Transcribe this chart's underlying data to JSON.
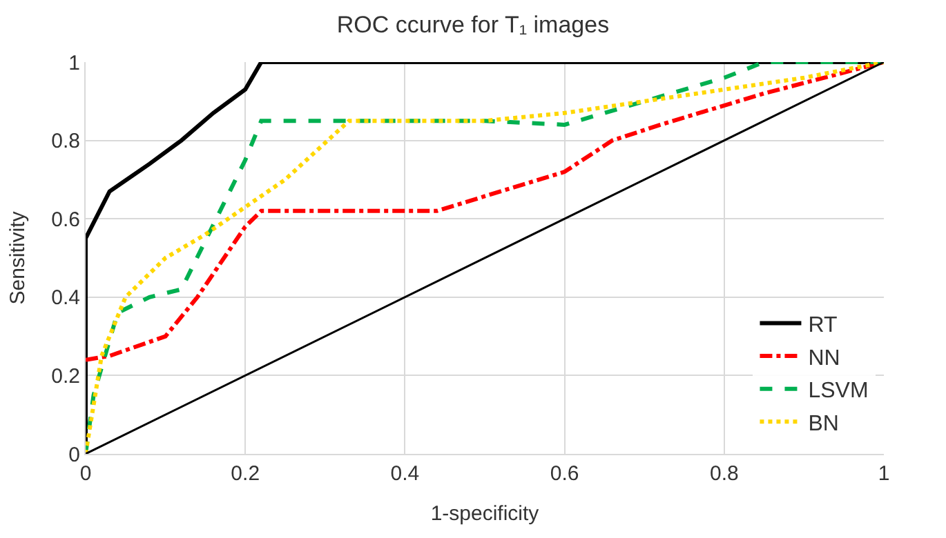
{
  "chart_data": {
    "type": "line",
    "title": "ROC ccurve for T₁ images",
    "xlabel": "1-specificity",
    "ylabel": "Sensitivity",
    "xlim": [
      0,
      1
    ],
    "xticks": [
      0,
      0.2,
      0.4,
      0.6,
      0.8,
      1
    ],
    "ylim": [
      0,
      1
    ],
    "yticks": [
      0,
      0.2,
      0.4,
      0.6,
      0.8,
      1
    ],
    "grid": true,
    "legend": "bottom right",
    "marker": "none",
    "series": [
      {
        "name": "RT",
        "color": "#000000",
        "line_style": "solid",
        "x": [
          0,
          0,
          0.03,
          0.08,
          0.12,
          0.16,
          0.2,
          0.22,
          1
        ],
        "values": [
          0,
          0.55,
          0.67,
          0.74,
          0.8,
          0.87,
          0.93,
          1,
          1
        ]
      },
      {
        "name": "NN",
        "color": "#ff0000",
        "line_style": "dashdot",
        "x": [
          0,
          0.03,
          0.1,
          0.14,
          0.2,
          0.22,
          0.33,
          0.44,
          0.6,
          0.66,
          0.72,
          0.85,
          1
        ],
        "values": [
          0.24,
          0.25,
          0.3,
          0.4,
          0.58,
          0.62,
          0.62,
          0.62,
          0.72,
          0.8,
          0.84,
          0.92,
          1
        ]
      },
      {
        "name": "LSVM",
        "color": "#00b050",
        "line_style": "dashed",
        "x": [
          0,
          0.01,
          0.04,
          0.08,
          0.12,
          0.2,
          0.22,
          0.33,
          0.5,
          0.6,
          0.7,
          0.8,
          0.85,
          1
        ],
        "values": [
          0,
          0.15,
          0.36,
          0.4,
          0.42,
          0.75,
          0.85,
          0.85,
          0.85,
          0.84,
          0.9,
          0.96,
          1,
          1
        ]
      },
      {
        "name": "BN",
        "color": "#ffd700",
        "line_style": "dotted",
        "x": [
          0,
          0.02,
          0.05,
          0.1,
          0.15,
          0.2,
          0.25,
          0.33,
          0.5,
          0.6,
          0.7,
          0.8,
          0.9,
          1
        ],
        "values": [
          0,
          0.25,
          0.4,
          0.5,
          0.56,
          0.63,
          0.7,
          0.85,
          0.85,
          0.87,
          0.9,
          0.93,
          0.96,
          1
        ]
      },
      {
        "color": "#000000",
        "line_style": "solid",
        "x": [
          0,
          1
        ],
        "values": [
          0,
          1
        ]
      }
    ]
  }
}
